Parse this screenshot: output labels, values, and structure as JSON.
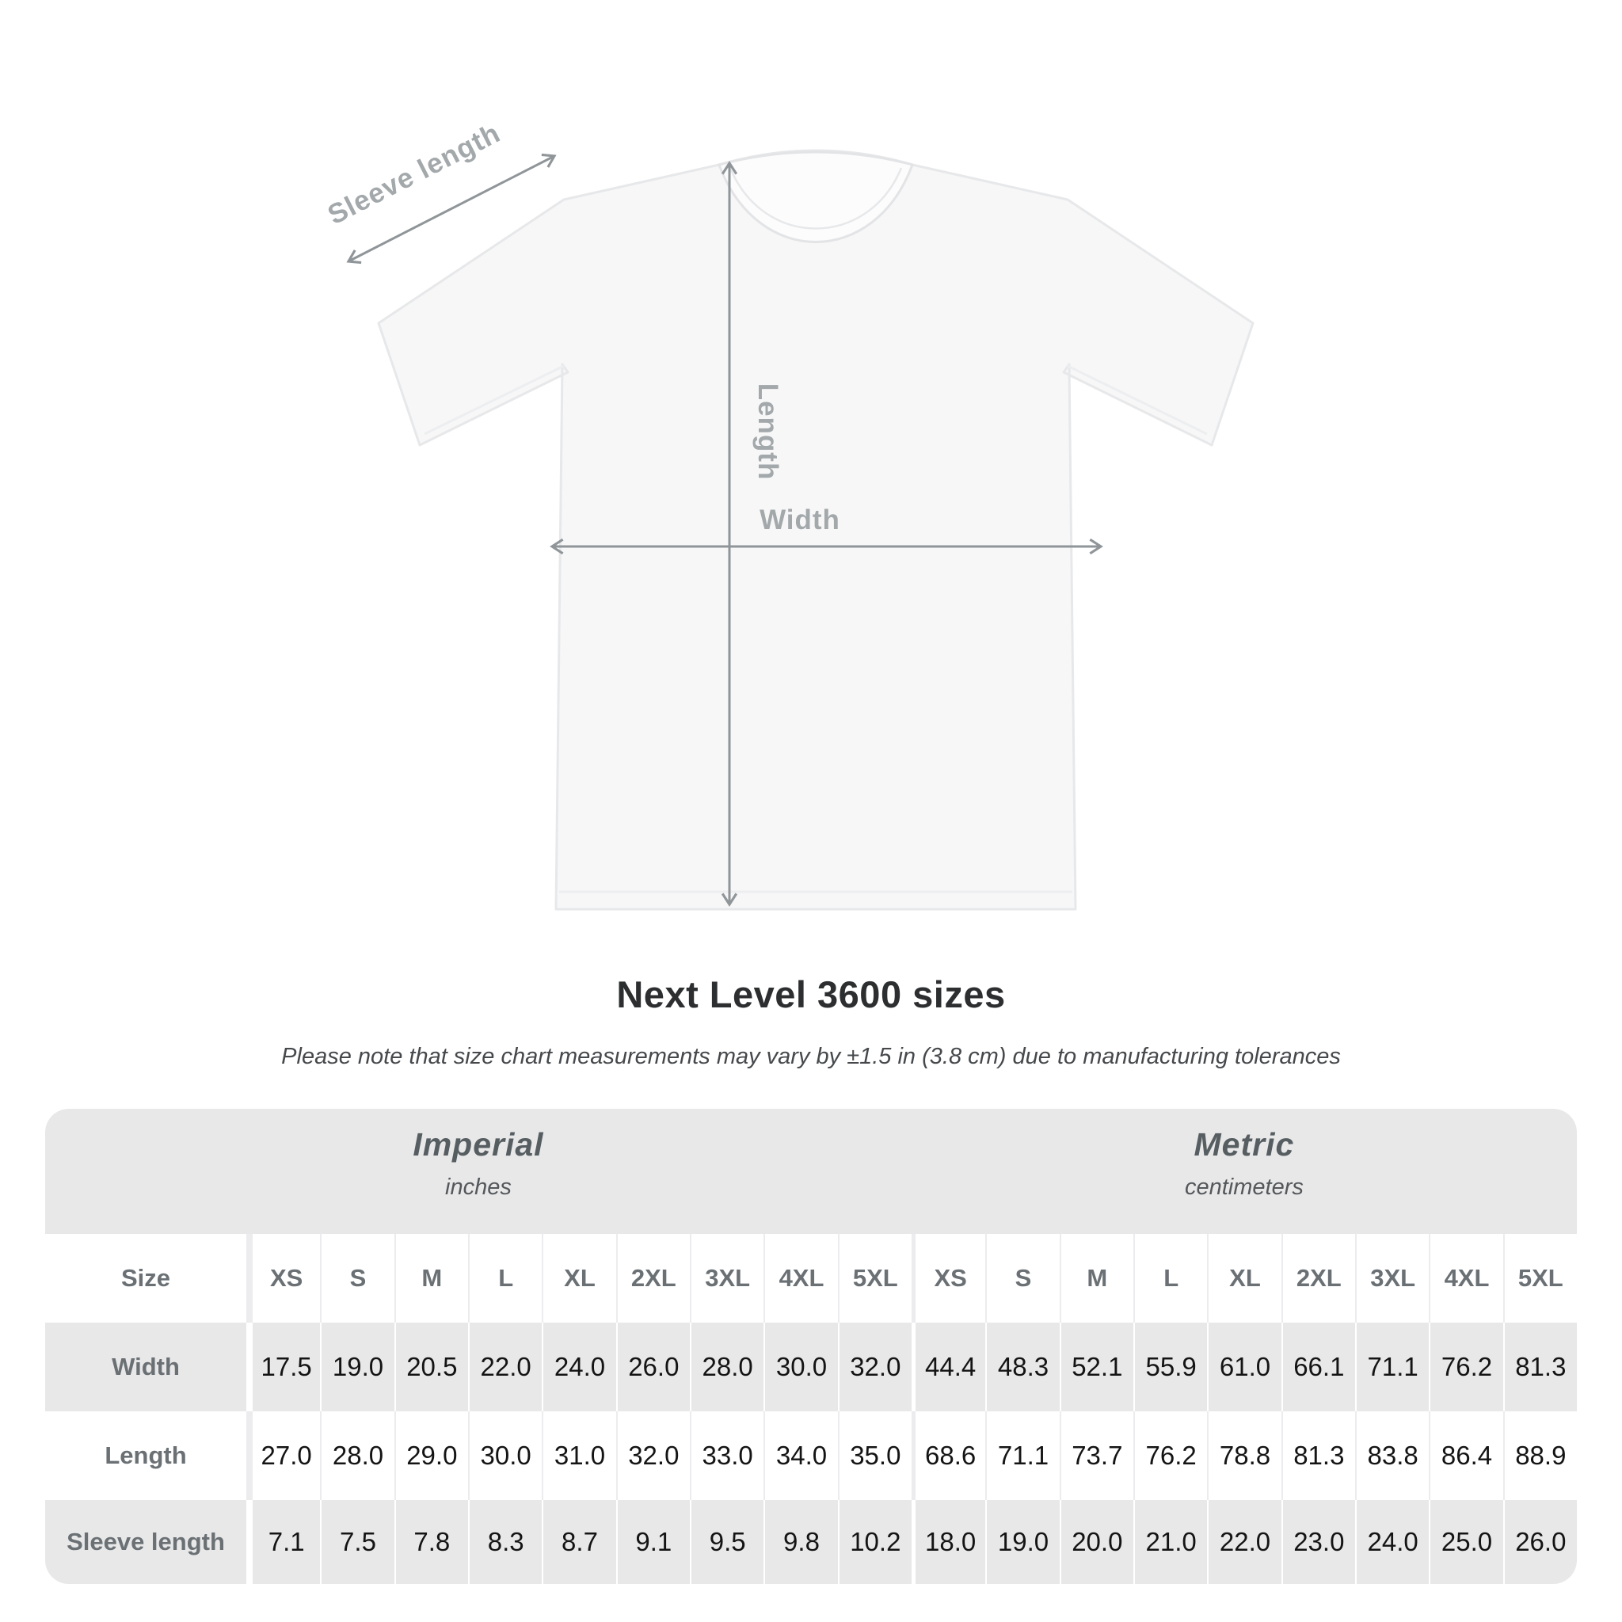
{
  "diagram": {
    "labels": {
      "sleeve": "Sleeve length",
      "length": "Length",
      "width": "Width"
    }
  },
  "title": "Next Level 3600 sizes",
  "note": "Please note that size chart measurements may vary by ±1.5 in (3.8 cm) due to manufacturing tolerances",
  "chart_data": {
    "type": "table",
    "title": "Next Level 3600 sizes",
    "size_header": "Size",
    "column_groups": [
      {
        "label": "Imperial",
        "unit": "inches"
      },
      {
        "label": "Metric",
        "unit": "centimeters"
      }
    ],
    "sizes": [
      "XS",
      "S",
      "M",
      "L",
      "XL",
      "2XL",
      "3XL",
      "4XL",
      "5XL"
    ],
    "rows": [
      {
        "label": "Width",
        "imperial": [
          17.5,
          19.0,
          20.5,
          22.0,
          24.0,
          26.0,
          28.0,
          30.0,
          32.0
        ],
        "metric": [
          44.4,
          48.3,
          52.1,
          55.9,
          61.0,
          66.1,
          71.1,
          76.2,
          81.3
        ]
      },
      {
        "label": "Length",
        "imperial": [
          27.0,
          28.0,
          29.0,
          30.0,
          31.0,
          32.0,
          33.0,
          34.0,
          35.0
        ],
        "metric": [
          68.6,
          71.1,
          73.7,
          76.2,
          78.8,
          81.3,
          83.8,
          86.4,
          88.9
        ]
      },
      {
        "label": "Sleeve length",
        "imperial": [
          7.1,
          7.5,
          7.8,
          8.3,
          8.7,
          9.1,
          9.5,
          9.8,
          10.2
        ],
        "metric": [
          18.0,
          19.0,
          20.0,
          21.0,
          22.0,
          23.0,
          24.0,
          25.0,
          26.0
        ]
      }
    ],
    "colors": {
      "row_shade": "#e8e8e9",
      "value_text": "#141414",
      "label_text": "#6a7074",
      "diagram_gray": "#9aa0a3"
    }
  }
}
